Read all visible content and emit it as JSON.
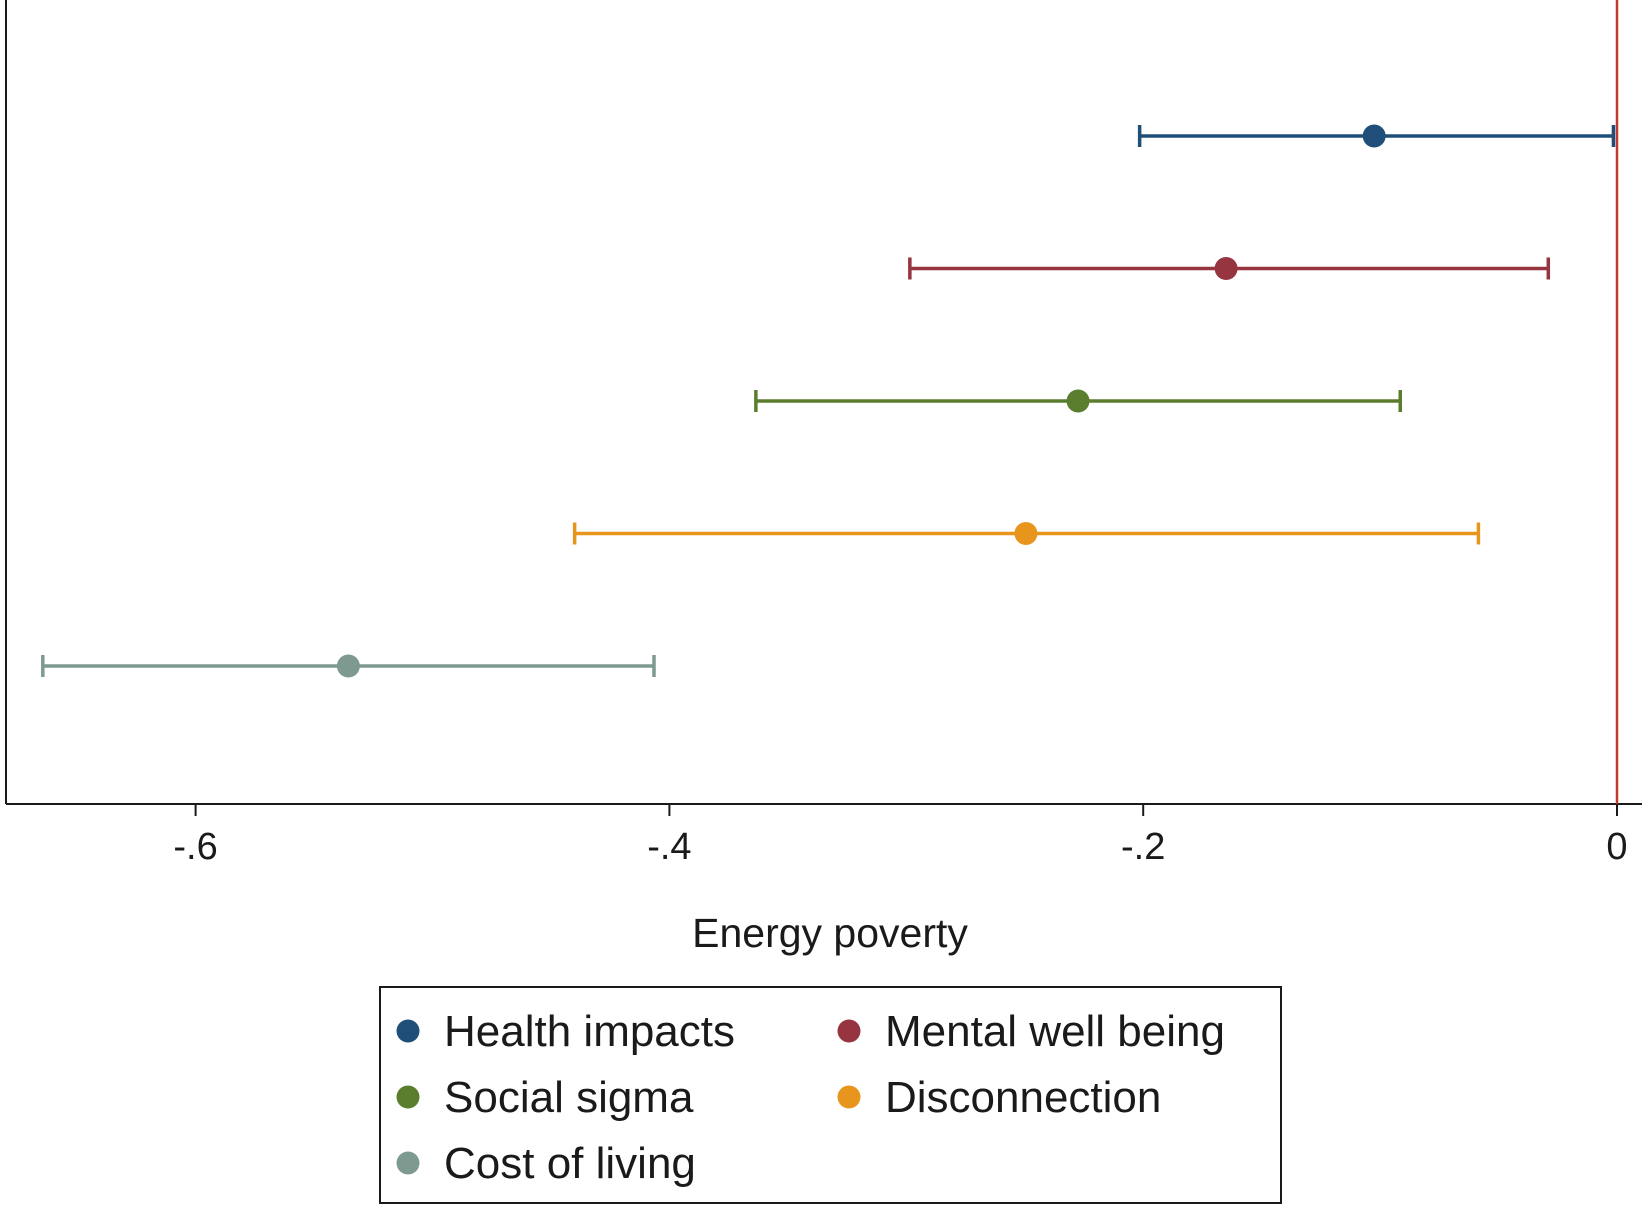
{
  "chart_data": {
    "type": "scatter",
    "subtype": "coefficient-plot",
    "orientation": "horizontal",
    "xlabel": "Energy poverty",
    "ylabel": "",
    "title": "",
    "xlim": [
      -0.67,
      0.0
    ],
    "xticks": [
      -0.6,
      -0.4,
      -0.2,
      0
    ],
    "xtick_labels": [
      "-.6",
      "-.4",
      "-.2",
      "0"
    ],
    "reference_line": {
      "x": 0,
      "color": "#c0392b"
    },
    "grid": false,
    "legend": {
      "position": "bottom",
      "columns": 2,
      "framed": true
    },
    "series": [
      {
        "name": "Health impacts",
        "estimate": -0.1025,
        "ci_low": -0.2015,
        "ci_high": -0.0015,
        "color": "#1f4e79"
      },
      {
        "name": "Mental well being",
        "estimate": -0.165,
        "ci_low": -0.2985,
        "ci_high": -0.029,
        "color": "#96343f"
      },
      {
        "name": "Social sigma",
        "estimate": -0.2275,
        "ci_low": -0.3635,
        "ci_high": -0.0915,
        "color": "#5a7d2e"
      },
      {
        "name": "Disconnection",
        "estimate": -0.2495,
        "ci_low": -0.44,
        "ci_high": -0.0585,
        "color": "#e8951e"
      },
      {
        "name": "Cost of living",
        "estimate": -0.5355,
        "ci_low": -0.6645,
        "ci_high": -0.4065,
        "color": "#7e9a90"
      }
    ]
  }
}
